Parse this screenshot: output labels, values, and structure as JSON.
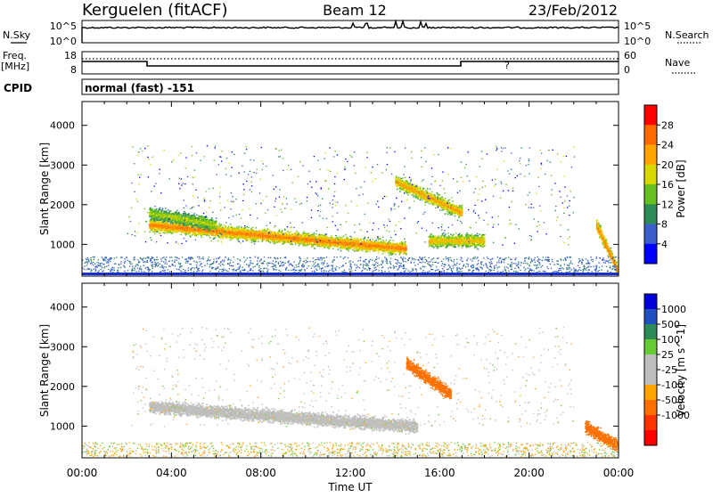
{
  "header": {
    "station": "Kerguelen (fitACF)",
    "beam": "Beam 12",
    "date": "23/Feb/2012"
  },
  "sky_panel": {
    "left_label": "N.Sky",
    "right_label": "N.Search",
    "left_ticks": [
      "10^5",
      "10^0"
    ],
    "right_ticks": [
      "10^5",
      "10^0"
    ]
  },
  "freq_panel": {
    "left_label_line1": "Freq.",
    "left_label_line2": "[MHz]",
    "right_label": "Nave",
    "left_ticks": [
      "18",
      "8"
    ],
    "right_ticks": [
      "60",
      "0"
    ]
  },
  "cpid": {
    "label": "CPID",
    "program": "normal (fast) -151"
  },
  "colors": {
    "power_scale": [
      "#0000ff",
      "#3a5fcd",
      "#2e8b57",
      "#66c020",
      "#d8d800",
      "#ffa500",
      "#ff6a00",
      "#ff0000"
    ],
    "velocity_scale": [
      "#0000dd",
      "#2050c0",
      "#2e8b57",
      "#66cc33",
      "#bebebe",
      "#bebebe",
      "#ffa500",
      "#ff7000",
      "#ff3300",
      "#ff0000"
    ],
    "scatter_gray": "#bebebe"
  },
  "chart_data": [
    {
      "type": "heatmap",
      "panel": "power",
      "ylabel": "Slant Range [km]",
      "xlabel": "",
      "xlim": [
        "00:00",
        "24:00"
      ],
      "ylim": [
        200,
        4600
      ],
      "y_ticks": [
        "1000",
        "2000",
        "3000",
        "4000"
      ],
      "colorbar": {
        "label": "Power [dB]",
        "ticks": [
          "4",
          "8",
          "12",
          "16",
          "20",
          "24",
          "28"
        ]
      },
      "features": [
        {
          "start_h": 3.0,
          "end_h": 14.5,
          "range_start_km": 1500,
          "range_end_km": 900,
          "peak_power_db": 28
        },
        {
          "start_h": 3.0,
          "end_h": 6.0,
          "range_start_km": 1800,
          "range_end_km": 1500,
          "peak_power_db": 20
        },
        {
          "start_h": 14.0,
          "end_h": 17.0,
          "range_start_km": 2600,
          "range_end_km": 1800,
          "peak_power_db": 26
        },
        {
          "start_h": 15.5,
          "end_h": 18.0,
          "range_start_km": 1100,
          "range_end_km": 1100,
          "peak_power_db": 24
        },
        {
          "start_h": 23.0,
          "end_h": 24.0,
          "range_start_km": 1500,
          "range_end_km": 300,
          "peak_power_db": 28
        }
      ]
    },
    {
      "type": "heatmap",
      "panel": "velocity",
      "ylabel": "Slant Range [km]",
      "xlabel": "Time UT",
      "xlim": [
        "00:00",
        "24:00"
      ],
      "ylim": [
        200,
        4600
      ],
      "x_ticks": [
        "00:00",
        "04:00",
        "08:00",
        "12:00",
        "16:00",
        "20:00",
        "00:00"
      ],
      "y_ticks": [
        "1000",
        "2000",
        "3000",
        "4000"
      ],
      "colorbar": {
        "label": "Velocity [m s^-1]",
        "ticks": [
          "1000",
          "500",
          "100",
          "25",
          "-25",
          "-100",
          "-500",
          "-1000"
        ]
      },
      "features": [
        {
          "start_h": 3.0,
          "end_h": 15.0,
          "range_start_km": 1500,
          "range_end_km": 1000,
          "velocity": 0
        },
        {
          "start_h": 14.5,
          "end_h": 16.5,
          "range_start_km": 2600,
          "range_end_km": 1800,
          "velocity": -300
        },
        {
          "start_h": 22.5,
          "end_h": 24.0,
          "range_start_km": 1000,
          "range_end_km": 500,
          "velocity": -400
        }
      ]
    }
  ]
}
